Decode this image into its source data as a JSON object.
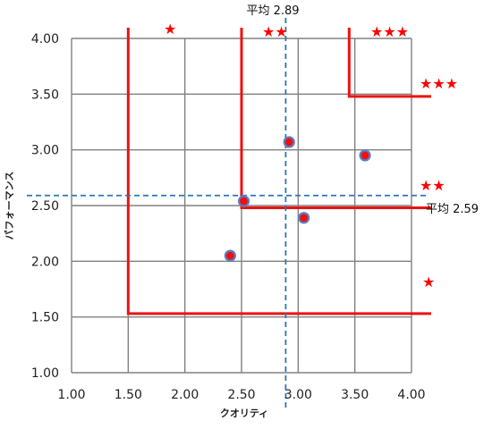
{
  "chart_data": {
    "type": "scatter",
    "xlabel": "クオリティ",
    "ylabel": "パフォーマンス",
    "xlim": [
      1.0,
      4.0
    ],
    "ylim": [
      1.0,
      4.0
    ],
    "x_ticks": [
      "1.00",
      "1.50",
      "2.00",
      "2.50",
      "3.00",
      "3.50",
      "4.00"
    ],
    "y_ticks": [
      "1.00",
      "1.50",
      "2.00",
      "2.50",
      "3.00",
      "3.50",
      "4.00"
    ],
    "grid": true,
    "points": [
      {
        "x": 2.4,
        "y": 2.05
      },
      {
        "x": 2.52,
        "y": 2.54
      },
      {
        "x": 2.92,
        "y": 3.07
      },
      {
        "x": 3.05,
        "y": 2.39
      },
      {
        "x": 3.59,
        "y": 2.95
      }
    ],
    "averages": {
      "x": {
        "value": 2.89,
        "label": "平均 2.89"
      },
      "y": {
        "value": 2.59,
        "label": "平均 2.59"
      }
    },
    "rating_regions": {
      "one_star": {
        "x_min": 1.5,
        "y_min": 1.53
      },
      "two_star": {
        "x_min": 2.5,
        "y_min": 2.48
      },
      "three_star": {
        "x_min": 3.45,
        "y_min": 3.48
      }
    },
    "star_labels": {
      "one": "★",
      "two": "★★",
      "three": "★★★"
    },
    "colors": {
      "point_fill": "#ee1111",
      "point_edge": "#5b7fc4",
      "average_line": "#2e75b6",
      "region_line": "#ee1111",
      "grid": "#808080",
      "stars": "#ff0000"
    }
  }
}
